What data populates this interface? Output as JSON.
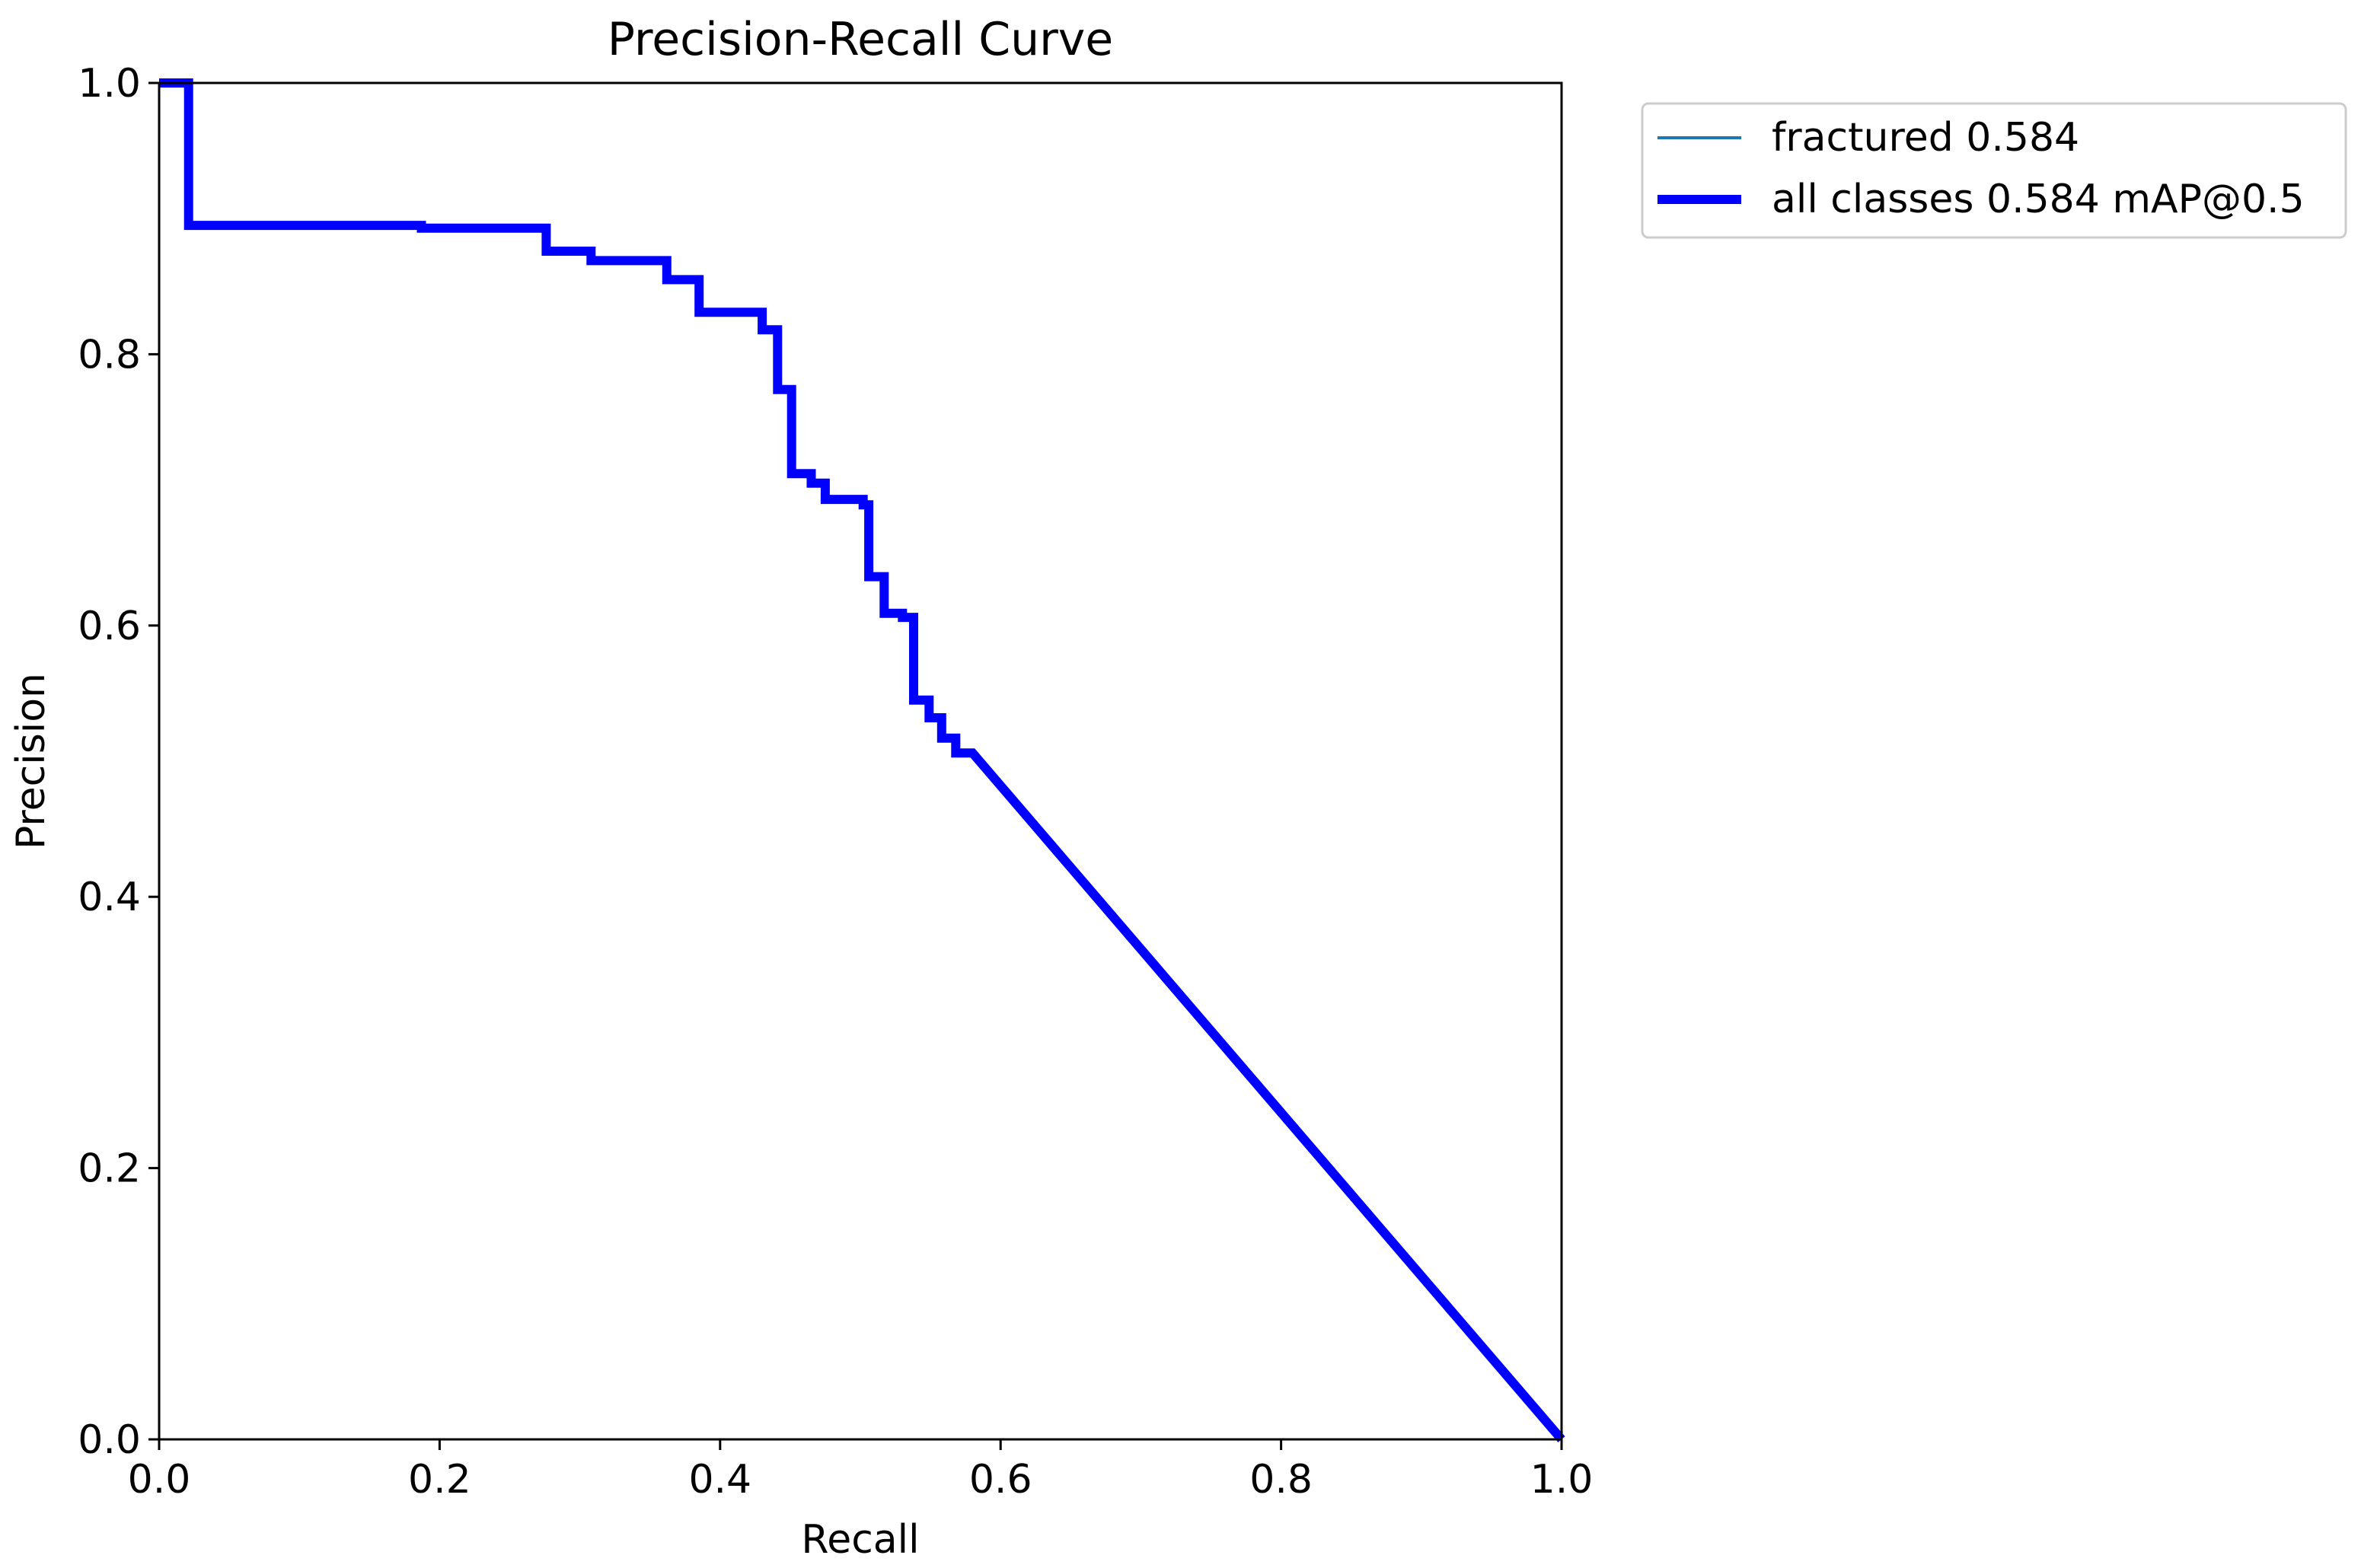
{
  "chart_data": {
    "type": "line",
    "title": "Precision-Recall Curve",
    "xlabel": "Recall",
    "ylabel": "Precision",
    "xlim": [
      0,
      1
    ],
    "ylim": [
      0,
      1
    ],
    "xticks": [
      "0.0",
      "0.2",
      "0.4",
      "0.6",
      "0.8",
      "1.0"
    ],
    "yticks": [
      "0.0",
      "0.2",
      "0.4",
      "0.6",
      "0.8",
      "1.0"
    ],
    "grid": false,
    "legend_position": "outside-top-right",
    "series": [
      {
        "name": "fractured 0.584",
        "color": "#1f77b4",
        "style": "thin",
        "x": [
          0.0,
          0.021,
          0.021,
          0.187,
          0.187,
          0.276,
          0.276,
          0.308,
          0.308,
          0.362,
          0.362,
          0.385,
          0.385,
          0.43,
          0.43,
          0.441,
          0.441,
          0.451,
          0.451,
          0.465,
          0.465,
          0.475,
          0.475,
          0.502,
          0.502,
          0.506,
          0.506,
          0.517,
          0.517,
          0.53,
          0.53,
          0.538,
          0.538,
          0.549,
          0.549,
          0.558,
          0.558,
          0.568,
          0.568,
          0.58,
          1.0
        ],
        "y": [
          1.0,
          1.0,
          0.895,
          0.895,
          0.893,
          0.893,
          0.876,
          0.876,
          0.869,
          0.869,
          0.855,
          0.855,
          0.831,
          0.831,
          0.818,
          0.818,
          0.774,
          0.774,
          0.712,
          0.712,
          0.705,
          0.705,
          0.693,
          0.693,
          0.689,
          0.689,
          0.636,
          0.636,
          0.609,
          0.609,
          0.606,
          0.606,
          0.545,
          0.545,
          0.532,
          0.532,
          0.517,
          0.517,
          0.506,
          0.506,
          0.0
        ]
      },
      {
        "name": "all classes 0.584 mAP@0.5",
        "color": "#0000ff",
        "style": "thick",
        "x": [
          0.0,
          0.021,
          0.021,
          0.187,
          0.187,
          0.276,
          0.276,
          0.308,
          0.308,
          0.362,
          0.362,
          0.385,
          0.385,
          0.43,
          0.43,
          0.441,
          0.441,
          0.451,
          0.451,
          0.465,
          0.465,
          0.475,
          0.475,
          0.502,
          0.502,
          0.506,
          0.506,
          0.517,
          0.517,
          0.53,
          0.53,
          0.538,
          0.538,
          0.549,
          0.549,
          0.558,
          0.558,
          0.568,
          0.568,
          0.58,
          1.0
        ],
        "y": [
          1.0,
          1.0,
          0.895,
          0.895,
          0.893,
          0.893,
          0.876,
          0.876,
          0.869,
          0.869,
          0.855,
          0.855,
          0.831,
          0.831,
          0.818,
          0.818,
          0.774,
          0.774,
          0.712,
          0.712,
          0.705,
          0.705,
          0.693,
          0.693,
          0.689,
          0.689,
          0.636,
          0.636,
          0.609,
          0.609,
          0.606,
          0.606,
          0.545,
          0.545,
          0.532,
          0.532,
          0.517,
          0.517,
          0.506,
          0.506,
          0.0
        ]
      }
    ]
  }
}
